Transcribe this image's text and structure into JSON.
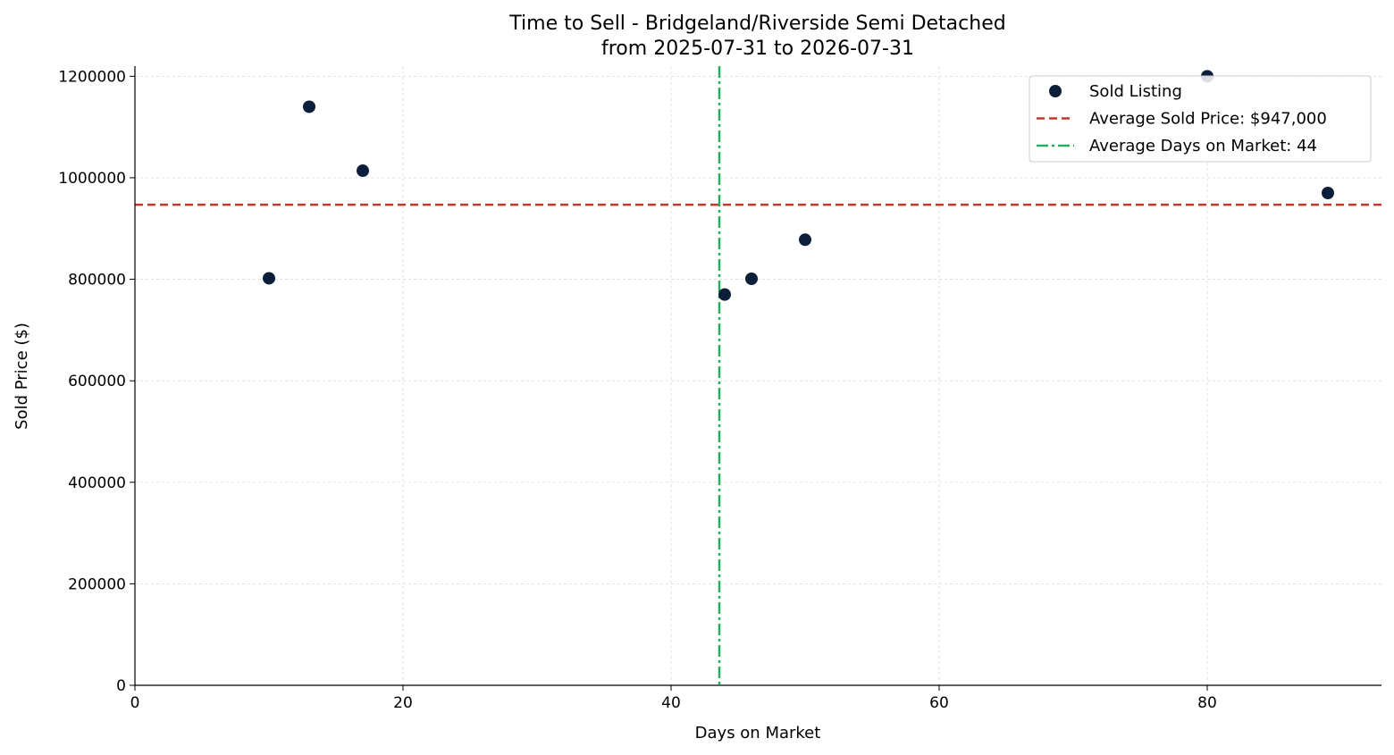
{
  "chart_data": {
    "type": "scatter",
    "title": "Time to Sell - Bridgeland/Riverside Semi Detached",
    "subtitle": "from 2025-07-31 to 2026-07-31",
    "xlabel": "Days on Market",
    "ylabel": "Sold Price ($)",
    "xlim": [
      0,
      93
    ],
    "ylim": [
      0,
      1220000
    ],
    "x_ticks": [
      0,
      20,
      40,
      60,
      80
    ],
    "x_tick_labels": [
      "0",
      "20",
      "40",
      "60",
      "80"
    ],
    "y_ticks": [
      0,
      200000,
      400000,
      600000,
      800000,
      1000000,
      1200000
    ],
    "y_tick_labels": [
      "0",
      "200000",
      "400000",
      "600000",
      "800000",
      "1000000",
      "1200000"
    ],
    "grid": true,
    "legend_position": "top-right",
    "series": [
      {
        "name": "Sold Listing",
        "color": "#0b1f3a",
        "points": [
          {
            "x": 10,
            "y": 802000
          },
          {
            "x": 13,
            "y": 1140000
          },
          {
            "x": 17,
            "y": 1014000
          },
          {
            "x": 44,
            "y": 770000
          },
          {
            "x": 46,
            "y": 801000
          },
          {
            "x": 50,
            "y": 878000
          },
          {
            "x": 80,
            "y": 1200000
          },
          {
            "x": 89,
            "y": 970000
          }
        ]
      }
    ],
    "reference_lines": [
      {
        "orientation": "horizontal",
        "value": 947000,
        "label": "Average Sold Price: $947,000",
        "color": "#c0392b",
        "style": "dashed"
      },
      {
        "orientation": "vertical",
        "value": 43.6,
        "label": "Average Days on Market: 44",
        "color": "#27ae60",
        "style": "dashdot"
      }
    ]
  }
}
